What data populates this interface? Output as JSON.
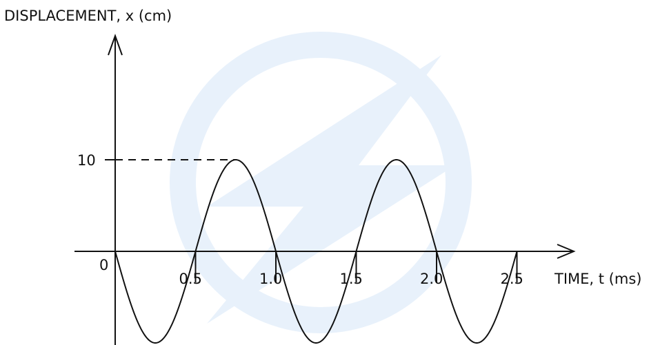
{
  "chart_data": {
    "type": "line",
    "xlabel": "TIME, t (ms)",
    "ylabel": "DISPLACEMENT, x (cm)",
    "x_ticks": [
      "0.5",
      "1.0",
      "1.5",
      "2.0",
      "2.5"
    ],
    "x_tick_values": [
      0.5,
      1.0,
      1.5,
      2.0,
      2.5
    ],
    "y_ticks": [
      "10"
    ],
    "y_tick_values": [
      10
    ],
    "origin_label": "0",
    "xlim": [
      0,
      2.5
    ],
    "ylim": [
      -10,
      10
    ],
    "reference_line": {
      "y": 10,
      "x_end": 0.75,
      "style": "dashed"
    },
    "series": [
      {
        "function": "sine",
        "amplitude": 10,
        "period": 1.0,
        "phase": "starts at 0 going negative",
        "x": [
          0,
          0.25,
          0.5,
          0.75,
          1.0,
          1.25,
          1.5,
          1.75,
          2.0,
          2.25,
          2.5
        ],
        "y": [
          0,
          -10,
          0,
          10,
          0,
          -10,
          0,
          10,
          0,
          -10,
          0
        ],
        "color": "#111111"
      }
    ],
    "grid": false,
    "watermark_color": "#e8f1fb"
  }
}
